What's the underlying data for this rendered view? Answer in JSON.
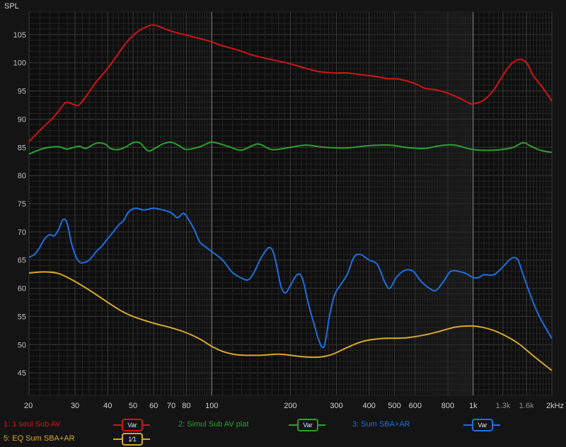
{
  "chart_data": {
    "type": "line",
    "ylabel": "SPL",
    "xscale": "log",
    "xlim": [
      20,
      2000
    ],
    "ylim": [
      41,
      109
    ],
    "yticks": [
      45,
      50,
      55,
      60,
      65,
      70,
      75,
      80,
      85,
      90,
      95,
      100,
      105
    ],
    "xticks": [
      {
        "value": 20,
        "label": "20"
      },
      {
        "value": 30,
        "label": "30"
      },
      {
        "value": 40,
        "label": "40"
      },
      {
        "value": 50,
        "label": "50"
      },
      {
        "value": 60,
        "label": "60"
      },
      {
        "value": 70,
        "label": "70"
      },
      {
        "value": 80,
        "label": "80"
      },
      {
        "value": 100,
        "label": "100"
      },
      {
        "value": 200,
        "label": "200"
      },
      {
        "value": 300,
        "label": "300"
      },
      {
        "value": 400,
        "label": "400"
      },
      {
        "value": 500,
        "label": "500"
      },
      {
        "value": 600,
        "label": "600"
      },
      {
        "value": 800,
        "label": "800"
      },
      {
        "value": 1000,
        "label": "1k"
      },
      {
        "value": 1300,
        "label": "1.3k"
      },
      {
        "value": 1600,
        "label": "1.6k"
      },
      {
        "value": 2000,
        "label": "2kHz"
      }
    ],
    "grid": true,
    "series": [
      {
        "name": "1: 1 seul  Sub AV",
        "color": "#d11414",
        "points": [
          [
            20,
            86
          ],
          [
            22,
            88
          ],
          [
            25,
            90.5
          ],
          [
            27,
            92.5
          ],
          [
            28,
            93
          ],
          [
            30,
            92.5
          ],
          [
            31,
            92.5
          ],
          [
            33,
            94
          ],
          [
            36,
            96.5
          ],
          [
            40,
            99
          ],
          [
            43,
            101
          ],
          [
            47,
            103.5
          ],
          [
            52,
            105.5
          ],
          [
            57,
            106.5
          ],
          [
            60,
            106.7
          ],
          [
            64,
            106.3
          ],
          [
            70,
            105.6
          ],
          [
            80,
            104.9
          ],
          [
            90,
            104.3
          ],
          [
            100,
            103.7
          ],
          [
            110,
            103
          ],
          [
            125,
            102.3
          ],
          [
            140,
            101.5
          ],
          [
            160,
            100.8
          ],
          [
            180,
            100.3
          ],
          [
            200,
            99.8
          ],
          [
            230,
            99
          ],
          [
            260,
            98.4
          ],
          [
            300,
            98.2
          ],
          [
            330,
            98.2
          ],
          [
            370,
            97.9
          ],
          [
            420,
            97.6
          ],
          [
            470,
            97.2
          ],
          [
            520,
            97.1
          ],
          [
            600,
            96.3
          ],
          [
            650,
            95.5
          ],
          [
            720,
            95.2
          ],
          [
            800,
            94.6
          ],
          [
            880,
            93.8
          ],
          [
            950,
            93
          ],
          [
            1000,
            92.7
          ],
          [
            1100,
            93.4
          ],
          [
            1200,
            95.2
          ],
          [
            1300,
            97.8
          ],
          [
            1400,
            99.8
          ],
          [
            1500,
            100.6
          ],
          [
            1600,
            100
          ],
          [
            1700,
            97.7
          ],
          [
            1850,
            95.5
          ],
          [
            2000,
            93.2
          ]
        ]
      },
      {
        "name": "2: Simul  Sub AV plat",
        "color": "#2aa12a",
        "points": [
          [
            20,
            83.8
          ],
          [
            22,
            84.6
          ],
          [
            24,
            85
          ],
          [
            26,
            85.1
          ],
          [
            28,
            84.7
          ],
          [
            31,
            85.2
          ],
          [
            33,
            84.8
          ],
          [
            36,
            85.7
          ],
          [
            39,
            85.6
          ],
          [
            41,
            84.8
          ],
          [
            44,
            84.6
          ],
          [
            47,
            85.1
          ],
          [
            50,
            85.8
          ],
          [
            53,
            85.8
          ],
          [
            57,
            84.4
          ],
          [
            60,
            84.7
          ],
          [
            65,
            85.6
          ],
          [
            70,
            85.9
          ],
          [
            75,
            85.3
          ],
          [
            80,
            84.6
          ],
          [
            90,
            85.1
          ],
          [
            100,
            85.9
          ],
          [
            115,
            85.2
          ],
          [
            130,
            84.5
          ],
          [
            150,
            85.6
          ],
          [
            170,
            84.6
          ],
          [
            200,
            85
          ],
          [
            230,
            85.4
          ],
          [
            270,
            85
          ],
          [
            330,
            84.9
          ],
          [
            400,
            85.3
          ],
          [
            480,
            85.4
          ],
          [
            550,
            85
          ],
          [
            650,
            84.8
          ],
          [
            750,
            85.3
          ],
          [
            850,
            85.4
          ],
          [
            1000,
            84.6
          ],
          [
            1200,
            84.5
          ],
          [
            1400,
            84.9
          ],
          [
            1550,
            85.8
          ],
          [
            1650,
            85.3
          ],
          [
            1800,
            84.5
          ],
          [
            2000,
            84.1
          ]
        ]
      },
      {
        "name": "3: Sum SBA+AR",
        "color": "#1d6fe0",
        "points": [
          [
            20,
            65.5
          ],
          [
            21,
            66
          ],
          [
            22,
            67.3
          ],
          [
            23,
            68.8
          ],
          [
            24,
            69.5
          ],
          [
            25,
            69.3
          ],
          [
            26,
            70.5
          ],
          [
            27,
            72.2
          ],
          [
            28,
            71.5
          ],
          [
            29,
            68.2
          ],
          [
            30,
            66
          ],
          [
            31,
            64.8
          ],
          [
            32,
            64.5
          ],
          [
            34,
            65
          ],
          [
            36,
            66.4
          ],
          [
            38,
            67.5
          ],
          [
            40,
            68.8
          ],
          [
            42,
            70
          ],
          [
            44,
            71.2
          ],
          [
            46,
            72
          ],
          [
            48,
            73.5
          ],
          [
            51,
            74.2
          ],
          [
            55,
            73.9
          ],
          [
            60,
            74.2
          ],
          [
            65,
            73.9
          ],
          [
            70,
            73.4
          ],
          [
            74,
            72.5
          ],
          [
            78,
            73.3
          ],
          [
            82,
            72
          ],
          [
            86,
            70.3
          ],
          [
            90,
            68.2
          ],
          [
            95,
            67.3
          ],
          [
            100,
            66.5
          ],
          [
            110,
            65
          ],
          [
            120,
            62.8
          ],
          [
            130,
            61.8
          ],
          [
            138,
            61.5
          ],
          [
            145,
            62.8
          ],
          [
            155,
            65.5
          ],
          [
            165,
            67.2
          ],
          [
            172,
            66.4
          ],
          [
            178,
            63.5
          ],
          [
            185,
            60
          ],
          [
            192,
            59.2
          ],
          [
            200,
            60.5
          ],
          [
            212,
            62.4
          ],
          [
            222,
            61.8
          ],
          [
            235,
            57
          ],
          [
            245,
            54
          ],
          [
            255,
            51.2
          ],
          [
            265,
            49.5
          ],
          [
            272,
            50.5
          ],
          [
            282,
            55
          ],
          [
            295,
            58.8
          ],
          [
            310,
            60.5
          ],
          [
            330,
            62.5
          ],
          [
            350,
            65.5
          ],
          [
            370,
            66
          ],
          [
            400,
            65
          ],
          [
            430,
            64.2
          ],
          [
            460,
            61
          ],
          [
            480,
            60
          ],
          [
            510,
            62
          ],
          [
            550,
            63.2
          ],
          [
            590,
            63
          ],
          [
            630,
            61.3
          ],
          [
            680,
            60
          ],
          [
            720,
            59.6
          ],
          [
            770,
            61.2
          ],
          [
            820,
            63
          ],
          [
            880,
            63
          ],
          [
            940,
            62.6
          ],
          [
            1000,
            61.9
          ],
          [
            1050,
            61.9
          ],
          [
            1100,
            62.4
          ],
          [
            1200,
            62.4
          ],
          [
            1300,
            63.8
          ],
          [
            1400,
            65.3
          ],
          [
            1480,
            65.1
          ],
          [
            1550,
            62.5
          ],
          [
            1650,
            59
          ],
          [
            1750,
            56
          ],
          [
            1850,
            53.8
          ],
          [
            2000,
            51.1
          ]
        ]
      },
      {
        "name": "5: EQ Sum SBA+AR",
        "color": "#d6a72a",
        "points": [
          [
            20,
            62.7
          ],
          [
            23,
            62.9
          ],
          [
            26,
            62.6
          ],
          [
            30,
            61.2
          ],
          [
            35,
            59.3
          ],
          [
            40,
            57.5
          ],
          [
            45,
            56
          ],
          [
            50,
            55
          ],
          [
            60,
            53.8
          ],
          [
            70,
            53
          ],
          [
            80,
            52.1
          ],
          [
            90,
            51
          ],
          [
            100,
            49.7
          ],
          [
            110,
            48.8
          ],
          [
            125,
            48.2
          ],
          [
            150,
            48.1
          ],
          [
            180,
            48.3
          ],
          [
            210,
            48
          ],
          [
            230,
            47.8
          ],
          [
            260,
            47.8
          ],
          [
            290,
            48.3
          ],
          [
            330,
            49.5
          ],
          [
            380,
            50.6
          ],
          [
            450,
            51.1
          ],
          [
            550,
            51.2
          ],
          [
            650,
            51.7
          ],
          [
            750,
            52.4
          ],
          [
            850,
            53.1
          ],
          [
            950,
            53.3
          ],
          [
            1050,
            53.2
          ],
          [
            1200,
            52.5
          ],
          [
            1350,
            51.4
          ],
          [
            1500,
            50.1
          ],
          [
            1700,
            48
          ],
          [
            2000,
            45.4
          ]
        ]
      }
    ]
  },
  "legend": [
    {
      "label": "1: 1 seul  Sub AV",
      "control": "Var",
      "color": "#d11414"
    },
    {
      "label": "2: Simul  Sub AV plat",
      "control": "Var",
      "color": "#2aa12a"
    },
    {
      "label": "3: Sum SBA+AR",
      "control": "Var",
      "color": "#1d6fe0"
    },
    {
      "label": "5: EQ Sum SBA+AR",
      "control": "1⁄1",
      "color": "#d6a72a"
    }
  ]
}
